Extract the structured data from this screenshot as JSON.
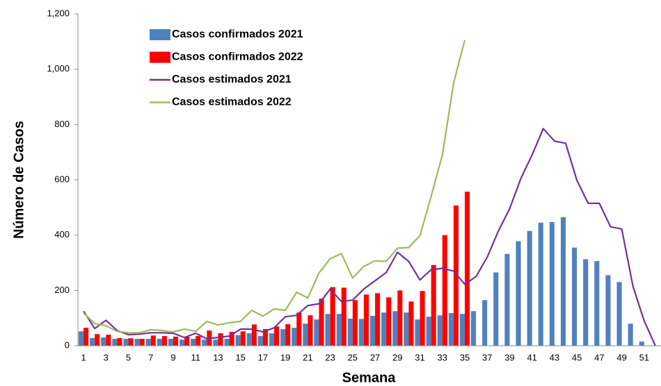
{
  "chart_data": {
    "type": "bar",
    "x_label": "Semana",
    "y_label": "Número de Casos",
    "categories": [
      "1",
      null,
      "3",
      null,
      "5",
      null,
      "7",
      null,
      "9",
      null,
      "11",
      null,
      "13",
      null,
      "15",
      null,
      "17",
      null,
      "19",
      null,
      "21",
      null,
      "23",
      null,
      "25",
      null,
      "27",
      null,
      "29",
      null,
      "31",
      null,
      "33",
      null,
      "35",
      null,
      "37",
      null,
      "39",
      null,
      "41",
      null,
      "43",
      null,
      "45",
      null,
      "47",
      null,
      "49",
      null,
      "51",
      null
    ],
    "ylim": [
      0,
      1200
    ],
    "yticks": [
      0,
      200,
      400,
      600,
      800,
      {
        "value": 1000,
        "label": "1,000"
      },
      {
        "value": 1200,
        "label": "1,200"
      }
    ],
    "legend": "upper left",
    "series": [
      {
        "name": "Casos confirmados 2021",
        "type": "bar",
        "color": "#4f81bd",
        "values": [
          52,
          28,
          30,
          25,
          25,
          25,
          25,
          25,
          25,
          22,
          25,
          22,
          22,
          25,
          38,
          45,
          35,
          45,
          60,
          65,
          80,
          95,
          115,
          115,
          98,
          97,
          108,
          120,
          125,
          120,
          95,
          105,
          110,
          118,
          115,
          125,
          165,
          265,
          332,
          378,
          415,
          445,
          447,
          465,
          355,
          313,
          306,
          255,
          230,
          80,
          15,
          0
        ]
      },
      {
        "name": "Casos confirmados 2022",
        "type": "bar",
        "color": "#ff0000",
        "values": [
          65,
          42,
          40,
          28,
          27,
          25,
          37,
          35,
          33,
          32,
          35,
          55,
          45,
          50,
          52,
          77,
          60,
          70,
          78,
          120,
          110,
          170,
          212,
          210,
          165,
          185,
          190,
          175,
          200,
          160,
          198,
          292,
          400,
          507,
          557,
          null,
          null,
          null,
          null,
          null,
          null,
          null,
          null,
          null,
          null,
          null,
          null,
          null,
          null,
          null,
          null,
          null
        ]
      },
      {
        "name": "Casos estimados 2021",
        "type": "line",
        "color": "#7030a0",
        "values": [
          125,
          62,
          92,
          55,
          40,
          42,
          47,
          47,
          45,
          30,
          45,
          25,
          30,
          35,
          60,
          60,
          50,
          65,
          105,
          110,
          145,
          152,
          205,
          160,
          165,
          205,
          235,
          265,
          338,
          305,
          238,
          275,
          280,
          270,
          222,
          250,
          320,
          415,
          495,
          605,
          690,
          785,
          740,
          732,
          598,
          515,
          515,
          430,
          422,
          215,
          90,
          0
        ]
      },
      {
        "name": "Casos estimados 2022",
        "type": "line",
        "color": "#9bbb59",
        "values": [
          118,
          80,
          72,
          52,
          47,
          47,
          58,
          55,
          50,
          60,
          52,
          88,
          75,
          83,
          88,
          128,
          107,
          133,
          128,
          193,
          173,
          263,
          315,
          333,
          245,
          287,
          307,
          305,
          353,
          355,
          398,
          540,
          690,
          950,
          1105,
          null,
          null,
          null,
          null,
          null,
          null,
          null,
          null,
          null,
          null,
          null,
          null,
          null,
          null,
          null,
          null,
          null
        ]
      }
    ]
  }
}
